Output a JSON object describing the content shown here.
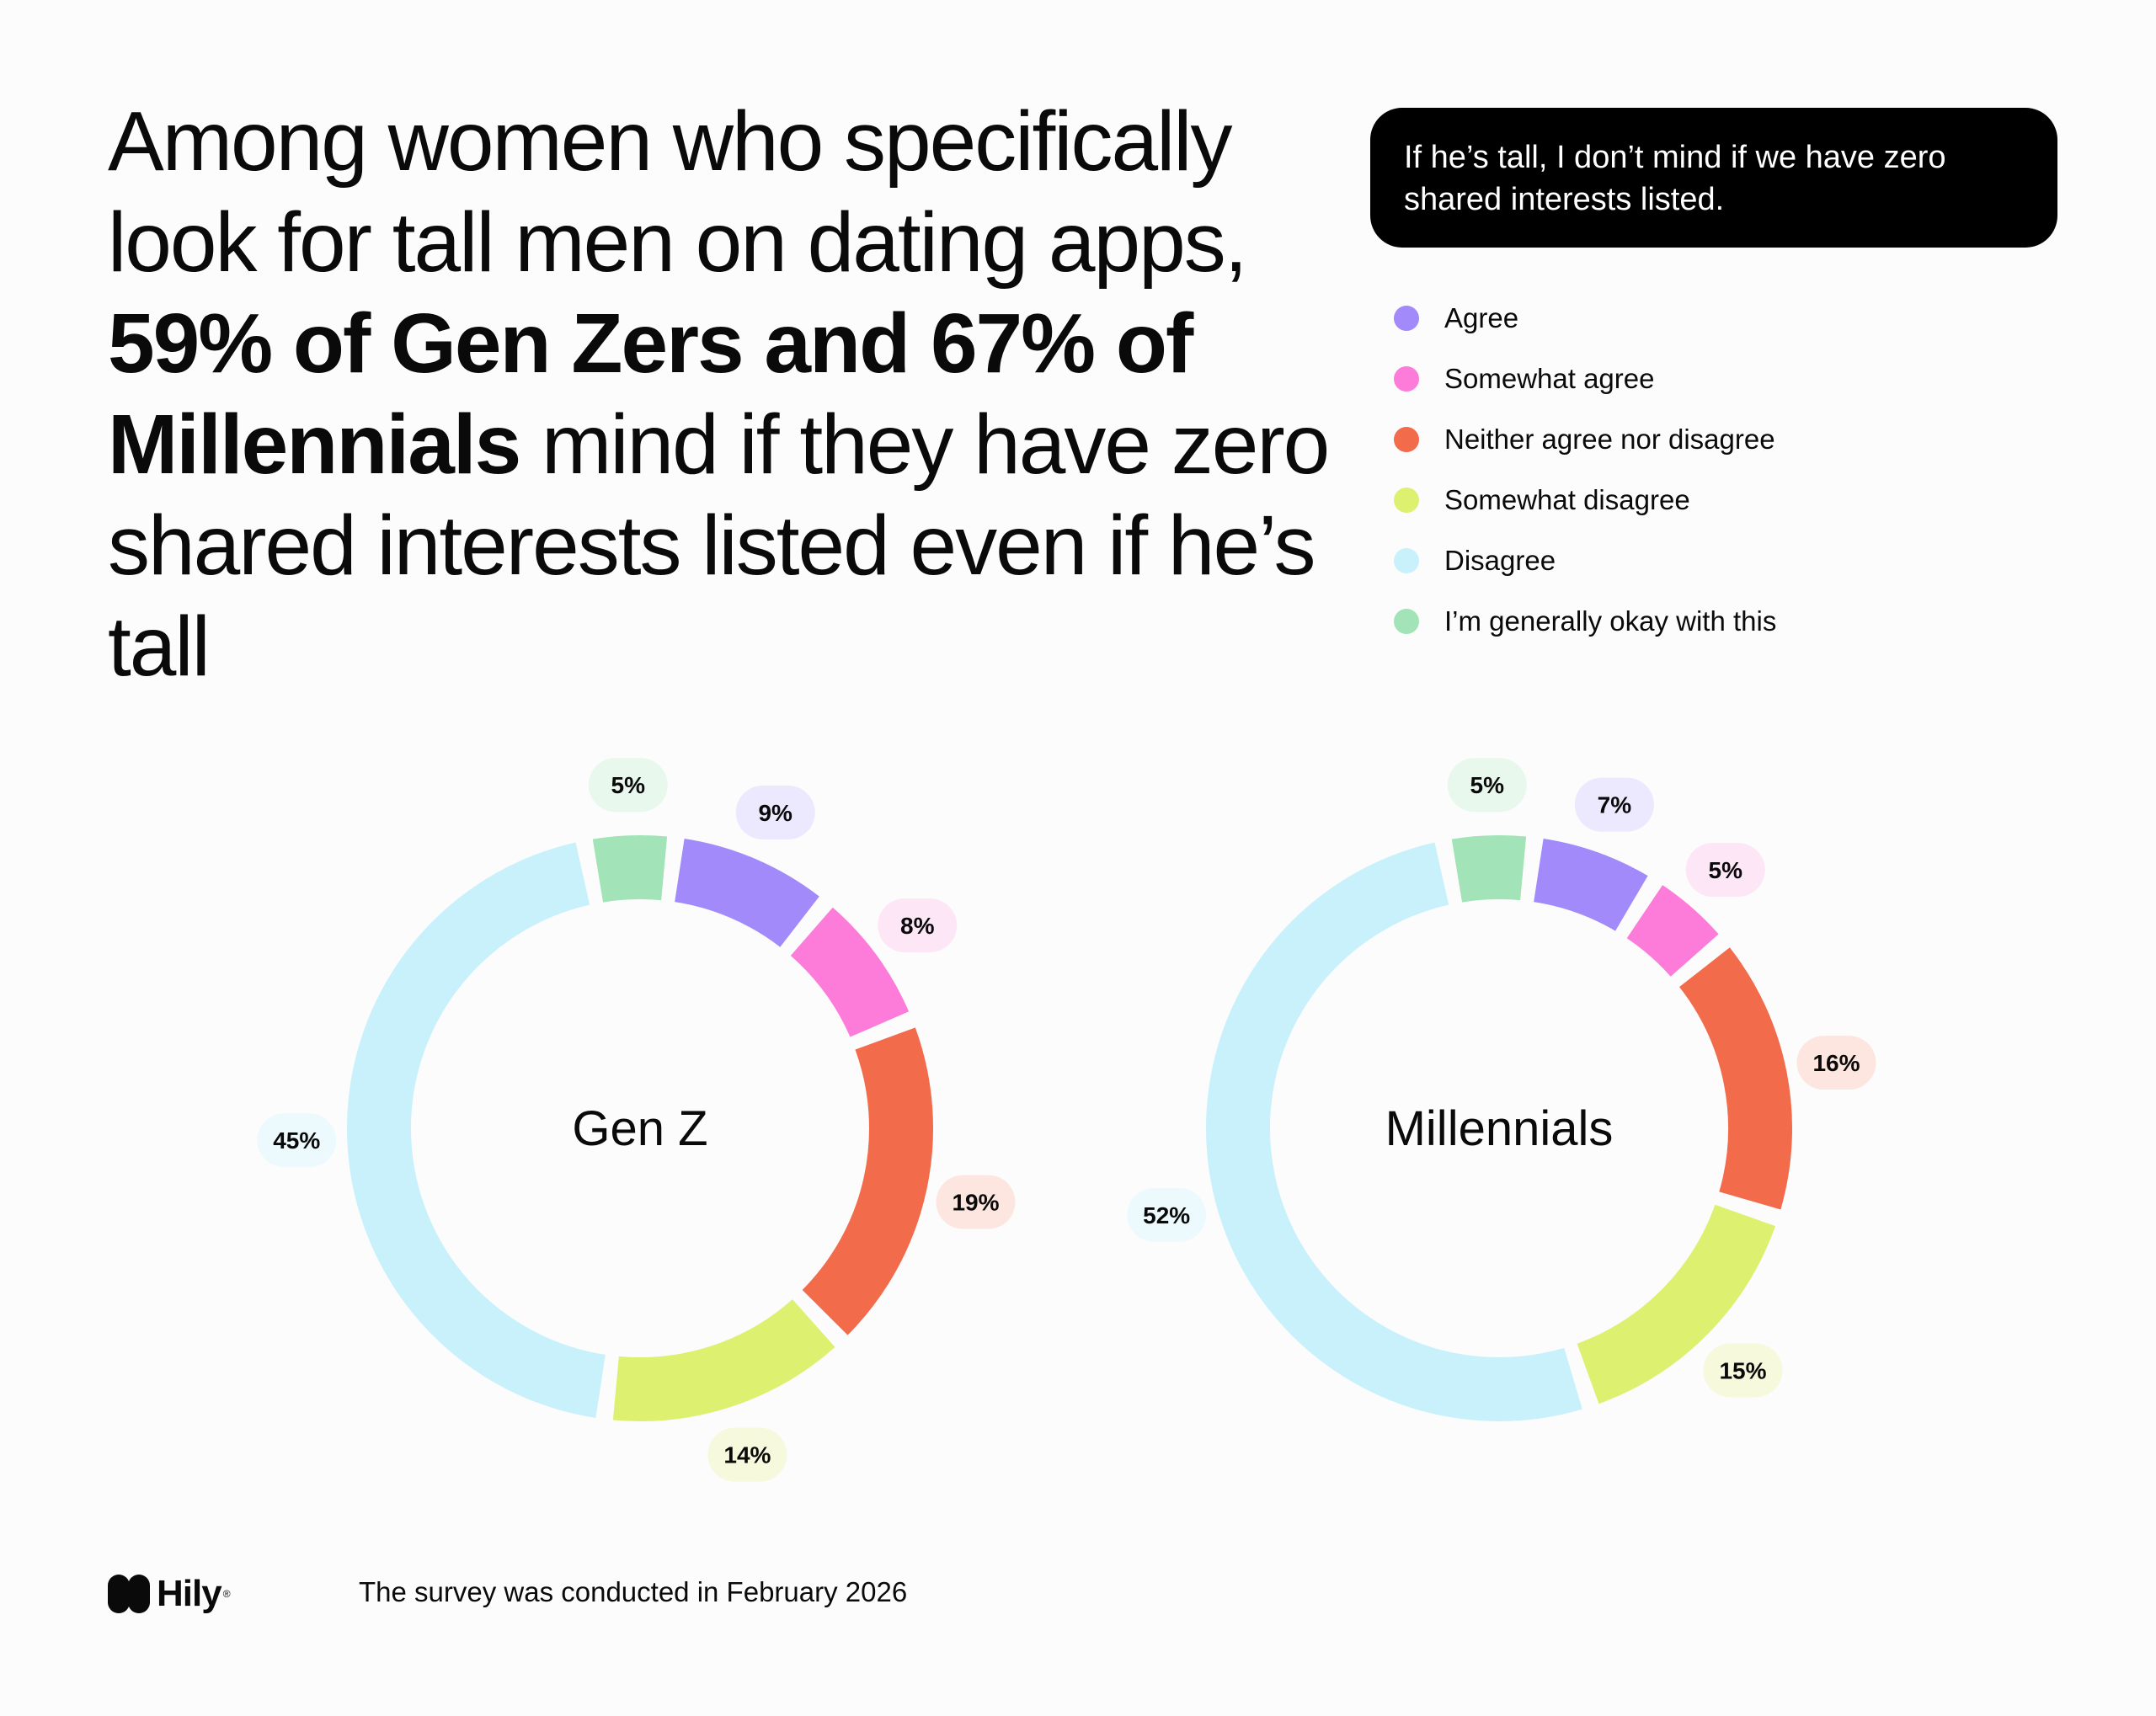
{
  "headline": {
    "part1": "Among women who specifically look for tall men on dating apps, ",
    "bold": "59% of Gen Zers and 67% of Millennials",
    "part2": " mind if they have zero shared interests listed even if he’s tall"
  },
  "statement": "If he’s tall, I don’t mind if we have zero shared interests listed.",
  "legend": [
    {
      "label": "Agree",
      "color": "#a38afa"
    },
    {
      "label": "Somewhat agree",
      "color": "#fd7bd9"
    },
    {
      "label": "Neither agree nor disagree",
      "color": "#f26b4b"
    },
    {
      "label": "Somewhat disagree",
      "color": "#def070"
    },
    {
      "label": "Disagree",
      "color": "#c9f1fb"
    },
    {
      "label": "I’m generally okay with this",
      "color": "#a2e4b8"
    }
  ],
  "chart_data": [
    {
      "type": "pie",
      "center_label": "Gen Z",
      "categories": [
        "Agree",
        "Somewhat agree",
        "Neither agree nor disagree",
        "Somewhat disagree",
        "Disagree",
        "I’m generally okay with this"
      ],
      "values": [
        9,
        8,
        19,
        14,
        45,
        5
      ],
      "labels": [
        "9%",
        "8%",
        "19%",
        "14%",
        "45%",
        "5%"
      ]
    },
    {
      "type": "pie",
      "center_label": "Millennials",
      "categories": [
        "Agree",
        "Somewhat agree",
        "Neither agree nor disagree",
        "Somewhat disagree",
        "Disagree",
        "I’m generally okay with this"
      ],
      "values": [
        7,
        5,
        16,
        15,
        52,
        5
      ],
      "labels": [
        "7%",
        "5%",
        "16%",
        "15%",
        "52%",
        "5%"
      ]
    }
  ],
  "footer": {
    "brand": "Hily",
    "note": "The survey was conducted in February 2026"
  }
}
